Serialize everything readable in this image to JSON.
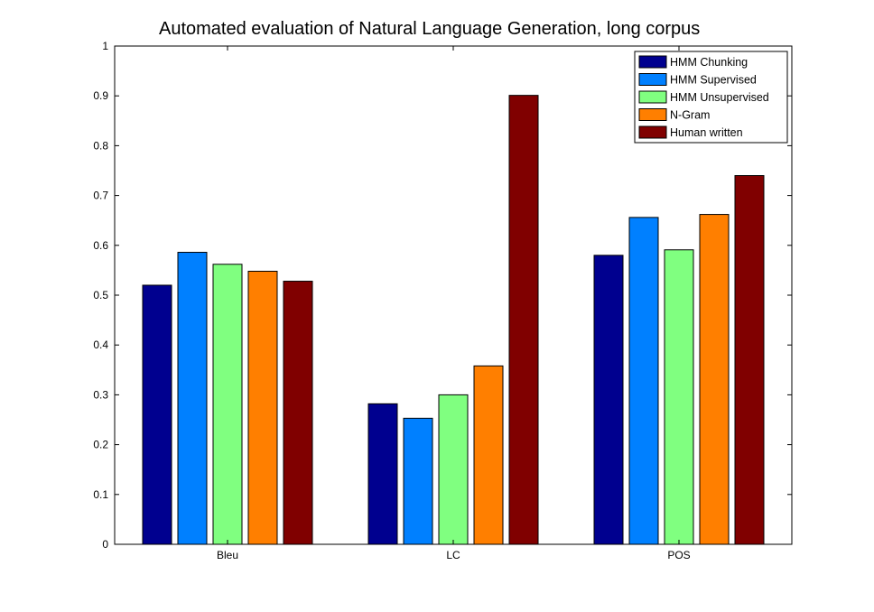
{
  "chart_data": {
    "type": "bar",
    "title": "Automated evaluation of Natural Language Generation, long corpus",
    "xlabel": "",
    "ylabel": "",
    "categories": [
      "Bleu",
      "LC",
      "POS"
    ],
    "ylim": [
      0,
      1
    ],
    "yticks": [
      "0",
      "0.1",
      "0.2",
      "0.3",
      "0.4",
      "0.5",
      "0.6",
      "0.7",
      "0.8",
      "0.9",
      "1"
    ],
    "legend_position": "top-right",
    "grid": false,
    "series": [
      {
        "name": "HMM Chunking",
        "color": "#00008F",
        "values": [
          0.52,
          0.282,
          0.58
        ]
      },
      {
        "name": "HMM Supervised",
        "color": "#0080FF",
        "values": [
          0.586,
          0.253,
          0.656
        ]
      },
      {
        "name": "HMM Unsupervised",
        "color": "#80FF80",
        "values": [
          0.562,
          0.3,
          0.591
        ]
      },
      {
        "name": "N-Gram",
        "color": "#FF7F00",
        "values": [
          0.548,
          0.358,
          0.662
        ]
      },
      {
        "name": "Human written",
        "color": "#800000",
        "values": [
          0.528,
          0.901,
          0.74
        ]
      }
    ]
  }
}
